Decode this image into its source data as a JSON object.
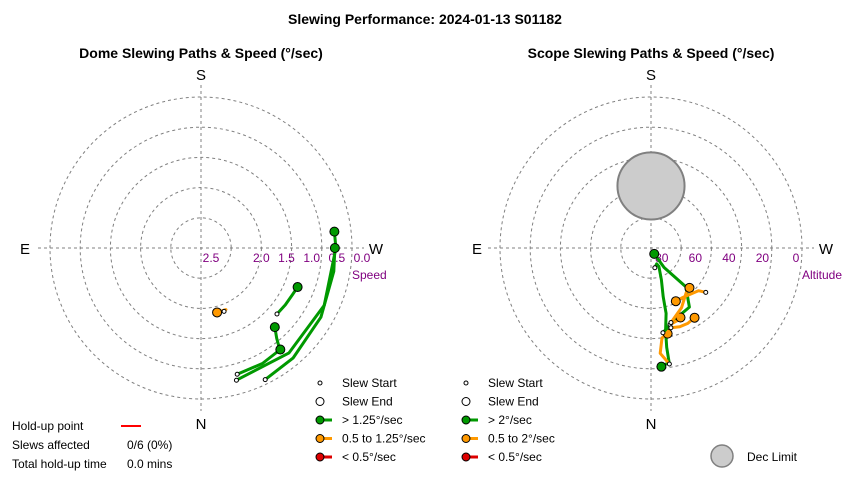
{
  "title": "Slewing Performance: 2024-01-13 S01182",
  "colors": {
    "fast": "#009900",
    "medium": "#ff9900",
    "slow": "#dd0000",
    "grid": "#808080",
    "axis_label": "#800080",
    "holdup": "#ff0000",
    "dec_fill": "#cccccc"
  },
  "holdup": {
    "point_label": "Hold-up point",
    "slews_label": "Slews affected",
    "slews_value": "0/6 (0%)",
    "time_label": "Total hold-up time",
    "time_value": "0.0 mins"
  },
  "chart_data": [
    {
      "type": "polar-path",
      "title": "Dome Slewing Paths & Speed (°/sec)",
      "directions": {
        "top": "S",
        "bottom": "N",
        "left": "E",
        "right": "W"
      },
      "radial_axis": {
        "label": "Speed",
        "ticks": [
          {
            "value": 2.5,
            "label": "2.5"
          },
          {
            "value": 2.0,
            "label": "2.0"
          },
          {
            "value": 1.5,
            "label": "1.5"
          },
          {
            "value": 1.0,
            "label": "1.0"
          },
          {
            "value": 0.5,
            "label": "0.5"
          },
          {
            "value": 0.0,
            "label": "0.0"
          }
        ],
        "center_value": 3.0,
        "edge_value": 0.0
      },
      "slews": [
        {
          "speed_class": "fast",
          "points": [
            [
              218,
              0.47
            ],
            [
              220,
              0.66
            ],
            [
              223,
              0.85
            ]
          ]
        },
        {
          "speed_class": "fast",
          "points": [
            [
              196,
              0.39
            ],
            [
              208,
              0.4
            ],
            [
              218,
              0.44
            ]
          ]
        },
        {
          "speed_class": "fast",
          "points": [
            [
              195,
              0.28
            ],
            [
              220,
              0.28
            ],
            [
              245,
              0.3
            ],
            [
              270,
              0.32
            ],
            [
              277,
              0.33
            ]
          ]
        },
        {
          "speed_class": "fast",
          "points": [
            [
              229,
              1.0
            ],
            [
              236,
              0.98
            ],
            [
              243,
              0.96
            ],
            [
              248,
              0.93
            ]
          ]
        },
        {
          "speed_class": "fast",
          "points": [
            [
              206,
              0.09
            ],
            [
              220,
              0.15
            ],
            [
              240,
              0.25
            ],
            [
              260,
              0.32
            ],
            [
              270,
              0.34
            ]
          ]
        },
        {
          "speed_class": "medium",
          "points": [
            [
              200,
              1.66
            ],
            [
              202,
              1.68
            ],
            [
              194,
              1.68
            ]
          ]
        }
      ],
      "legend": {
        "items": [
          {
            "kind": "start",
            "label": "Slew Start"
          },
          {
            "kind": "end",
            "label": "Slew End"
          },
          {
            "kind": "fast",
            "label": "> 1.25°/sec"
          },
          {
            "kind": "medium",
            "label": "0.5 to 1.25°/sec"
          },
          {
            "kind": "slow",
            "label": "< 0.5°/sec"
          }
        ]
      }
    },
    {
      "type": "polar-path",
      "title": "Scope Slewing Paths & Speed (°/sec)",
      "directions": {
        "top": "S",
        "bottom": "N",
        "left": "E",
        "right": "W"
      },
      "radial_axis": {
        "label": "Altitude",
        "ticks": [
          {
            "value": 80,
            "label": "80"
          },
          {
            "value": 60,
            "label": "60"
          },
          {
            "value": 40,
            "label": "40"
          },
          {
            "value": 20,
            "label": "20"
          },
          {
            "value": 0,
            "label": "0"
          }
        ],
        "center_value": 90,
        "edge_value": 0
      },
      "dec_limit": {
        "label": "Dec Limit",
        "azimuth": 0,
        "altitude": 53,
        "radius_deg": 20
      },
      "slews": [
        {
          "speed_class": "fast",
          "points": [
            [
              191,
              78
            ],
            [
              200,
              80
            ],
            [
              203,
              78
            ],
            [
              198,
              70
            ],
            [
              194,
              60
            ],
            [
              193,
              50
            ],
            [
              190,
              40
            ],
            [
              189,
              30
            ],
            [
              189,
              21
            ],
            [
              185,
              19
            ]
          ]
        },
        {
          "speed_class": "medium",
          "points": [
            [
              189,
              20
            ],
            [
              185,
              27
            ],
            [
              187,
              36
            ],
            [
              191,
              38
            ]
          ]
        },
        {
          "speed_class": "fast",
          "points": [
            [
              188,
              39
            ],
            [
              198,
              45
            ],
            [
              213,
              48
            ],
            [
              222,
              59
            ],
            [
              214,
              76
            ],
            [
              209,
              86
            ]
          ]
        },
        {
          "speed_class": "medium",
          "points": [
            [
              194,
              43
            ],
            [
              200,
              44
            ],
            [
              203,
              45
            ]
          ]
        },
        {
          "speed_class": "medium",
          "points": [
            [
              195,
              44
            ],
            [
              207,
              50
            ],
            [
              218,
              56
            ],
            [
              224,
              57
            ]
          ]
        },
        {
          "speed_class": "medium",
          "points": [
            [
              231,
              48
            ],
            [
              228,
              52
            ],
            [
              212,
              55
            ],
            [
              205,
              55
            ]
          ]
        },
        {
          "speed_class": "medium",
          "points": [
            [
              194,
              41
            ],
            [
              200,
              40
            ],
            [
              206,
              40
            ],
            [
              212,
              41
            ]
          ]
        }
      ],
      "legend": {
        "items": [
          {
            "kind": "start",
            "label": "Slew Start"
          },
          {
            "kind": "end",
            "label": "Slew End"
          },
          {
            "kind": "fast",
            "label": "> 2°/sec"
          },
          {
            "kind": "medium",
            "label": "0.5 to 2°/sec"
          },
          {
            "kind": "slow",
            "label": "< 0.5°/sec"
          }
        ]
      }
    }
  ]
}
